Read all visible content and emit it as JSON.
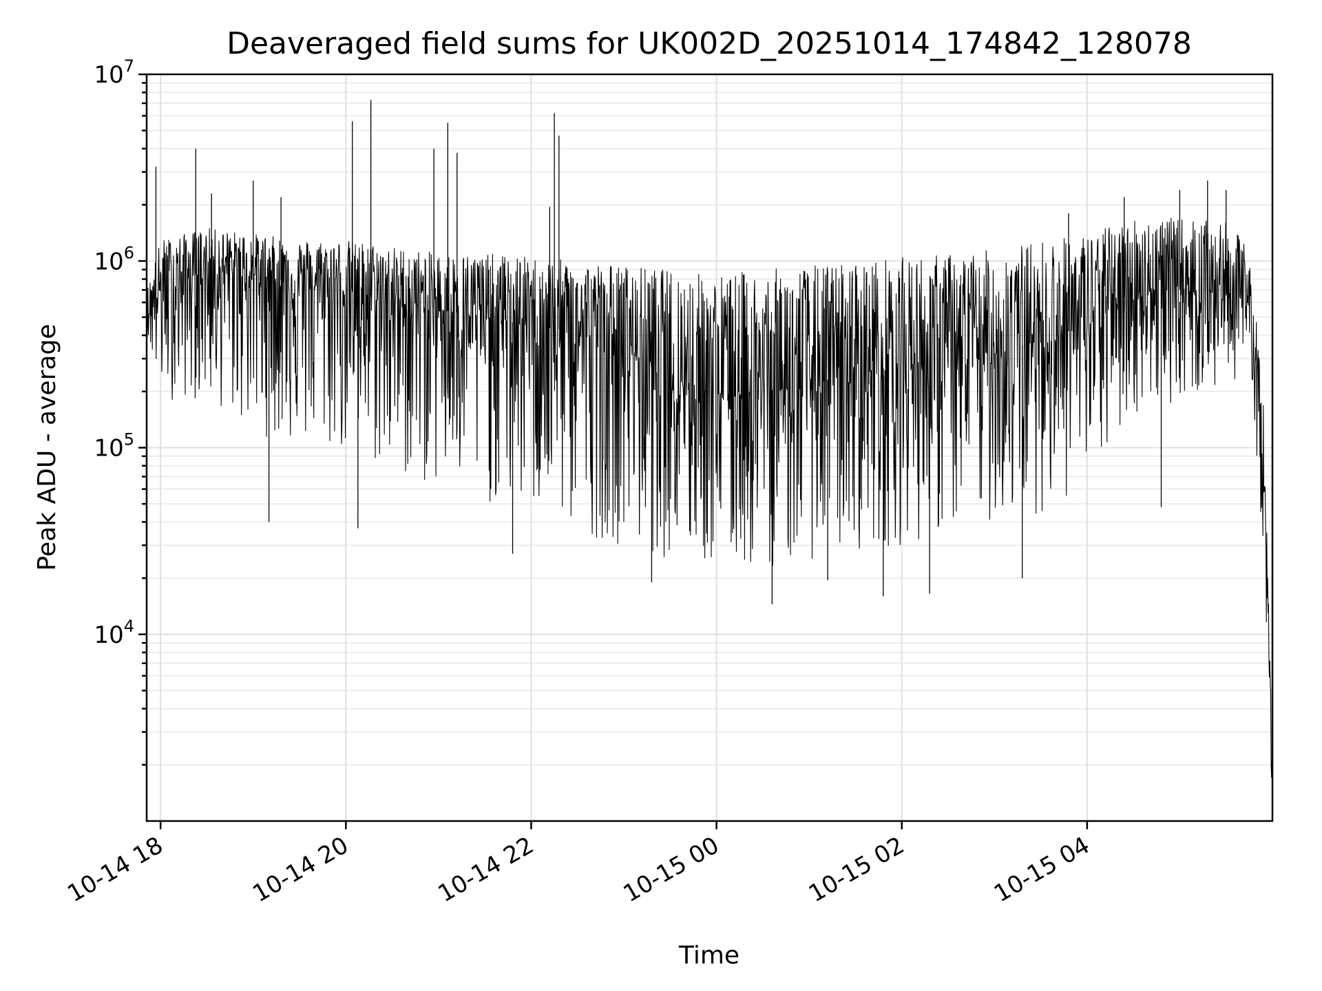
{
  "chart_data": {
    "type": "line",
    "title": "Deaveraged field sums for UK002D_20251014_174842_128078",
    "xlabel": "Time",
    "ylabel": "Peak ADU - average",
    "yscale": "log",
    "ylim": [
      1000,
      10000000
    ],
    "xlim_hours": [
      -0.15,
      12.0
    ],
    "x_reference": "2025-10-14 18:00",
    "x_ticks": [
      {
        "hours": 0,
        "label": "10-14 18"
      },
      {
        "hours": 2,
        "label": "10-14 20"
      },
      {
        "hours": 4,
        "label": "10-14 22"
      },
      {
        "hours": 6,
        "label": "10-15 00"
      },
      {
        "hours": 8,
        "label": "10-15 02"
      },
      {
        "hours": 10,
        "label": "10-15 04"
      }
    ],
    "y_ticks": [
      {
        "value": 10000,
        "base": "10",
        "exp": "4"
      },
      {
        "value": 100000,
        "base": "10",
        "exp": "5"
      },
      {
        "value": 1000000,
        "base": "10",
        "exp": "6"
      },
      {
        "value": 10000000,
        "base": "10",
        "exp": "7"
      }
    ],
    "grid": true,
    "line_color": "#000000",
    "series": [
      {
        "name": "Deaveraged field sums",
        "envelope": {
          "hours": [
            -0.15,
            0.0,
            0.5,
            1.0,
            1.5,
            2.0,
            2.5,
            3.0,
            3.5,
            4.0,
            4.5,
            5.0,
            5.5,
            6.0,
            6.5,
            7.0,
            7.5,
            8.0,
            8.5,
            9.0,
            9.5,
            10.0,
            10.5,
            11.0,
            11.5,
            11.75,
            11.9,
            12.0
          ],
          "center": [
            500000,
            700000,
            900000,
            850000,
            750000,
            700000,
            600000,
            550000,
            500000,
            450000,
            420000,
            350000,
            250000,
            200000,
            200000,
            220000,
            250000,
            280000,
            300000,
            320000,
            380000,
            450000,
            700000,
            700000,
            700000,
            600000,
            100000,
            1500
          ],
          "upper": [
            700000,
            1300000,
            1500000,
            1400000,
            1300000,
            1300000,
            1200000,
            1100000,
            1100000,
            1050000,
            1000000,
            950000,
            900000,
            850000,
            900000,
            950000,
            1000000,
            1050000,
            1100000,
            1150000,
            1300000,
            1400000,
            1700000,
            1700000,
            1600000,
            1200000,
            200000,
            2500
          ],
          "lower": [
            400000,
            180000,
            180000,
            120000,
            100000,
            90000,
            70000,
            60000,
            50000,
            45000,
            35000,
            30000,
            25000,
            22000,
            22000,
            25000,
            28000,
            30000,
            35000,
            40000,
            45000,
            60000,
            150000,
            180000,
            200000,
            300000,
            30000,
            1200
          ]
        },
        "spikes": [
          {
            "hours": -0.05,
            "value": 3200000
          },
          {
            "hours": 0.38,
            "value": 4000000
          },
          {
            "hours": 0.55,
            "value": 2300000
          },
          {
            "hours": 1.0,
            "value": 2700000
          },
          {
            "hours": 1.3,
            "value": 2200000
          },
          {
            "hours": 2.07,
            "value": 5600000
          },
          {
            "hours": 2.27,
            "value": 7300000
          },
          {
            "hours": 2.95,
            "value": 4000000
          },
          {
            "hours": 3.1,
            "value": 5500000
          },
          {
            "hours": 3.2,
            "value": 3800000
          },
          {
            "hours": 4.2,
            "value": 1950000
          },
          {
            "hours": 4.25,
            "value": 6200000
          },
          {
            "hours": 4.3,
            "value": 4700000
          },
          {
            "hours": 9.8,
            "value": 1800000
          },
          {
            "hours": 10.4,
            "value": 2200000
          },
          {
            "hours": 11.0,
            "value": 2400000
          },
          {
            "hours": 11.3,
            "value": 2700000
          },
          {
            "hours": 11.5,
            "value": 2400000
          }
        ],
        "dips": [
          {
            "hours": 1.17,
            "value": 40000
          },
          {
            "hours": 2.13,
            "value": 37000
          },
          {
            "hours": 3.8,
            "value": 27000
          },
          {
            "hours": 5.3,
            "value": 19000
          },
          {
            "hours": 6.6,
            "value": 14500
          },
          {
            "hours": 7.2,
            "value": 19500
          },
          {
            "hours": 7.8,
            "value": 16000
          },
          {
            "hours": 8.3,
            "value": 16500
          },
          {
            "hours": 9.3,
            "value": 20000
          },
          {
            "hours": 10.8,
            "value": 48000
          }
        ]
      }
    ]
  }
}
